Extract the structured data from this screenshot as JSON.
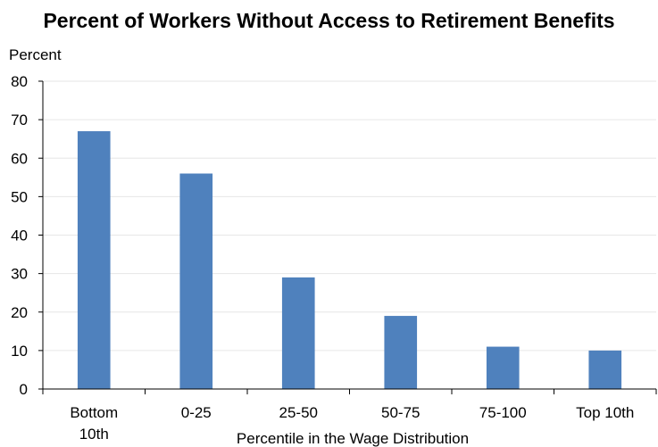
{
  "chart_data": {
    "type": "bar",
    "title": "Percent of Workers Without Access to Retirement Benefits",
    "ylabel": "Percent",
    "xlabel": "Percentile in the Wage Distribution",
    "categories": [
      [
        "Bottom",
        "10th"
      ],
      [
        "0-25"
      ],
      [
        "25-50"
      ],
      [
        "50-75"
      ],
      [
        "75-100"
      ],
      [
        "Top 10th"
      ]
    ],
    "values": [
      67,
      56,
      29,
      19,
      11,
      10
    ],
    "ylim": [
      0,
      80
    ],
    "yticks": [
      0,
      10,
      20,
      30,
      40,
      50,
      60,
      70,
      80
    ],
    "grid": true,
    "legend": "none",
    "bar_color": "#4f81bd",
    "grid_color": "#e6e6e6",
    "axis_color": "#000000"
  }
}
